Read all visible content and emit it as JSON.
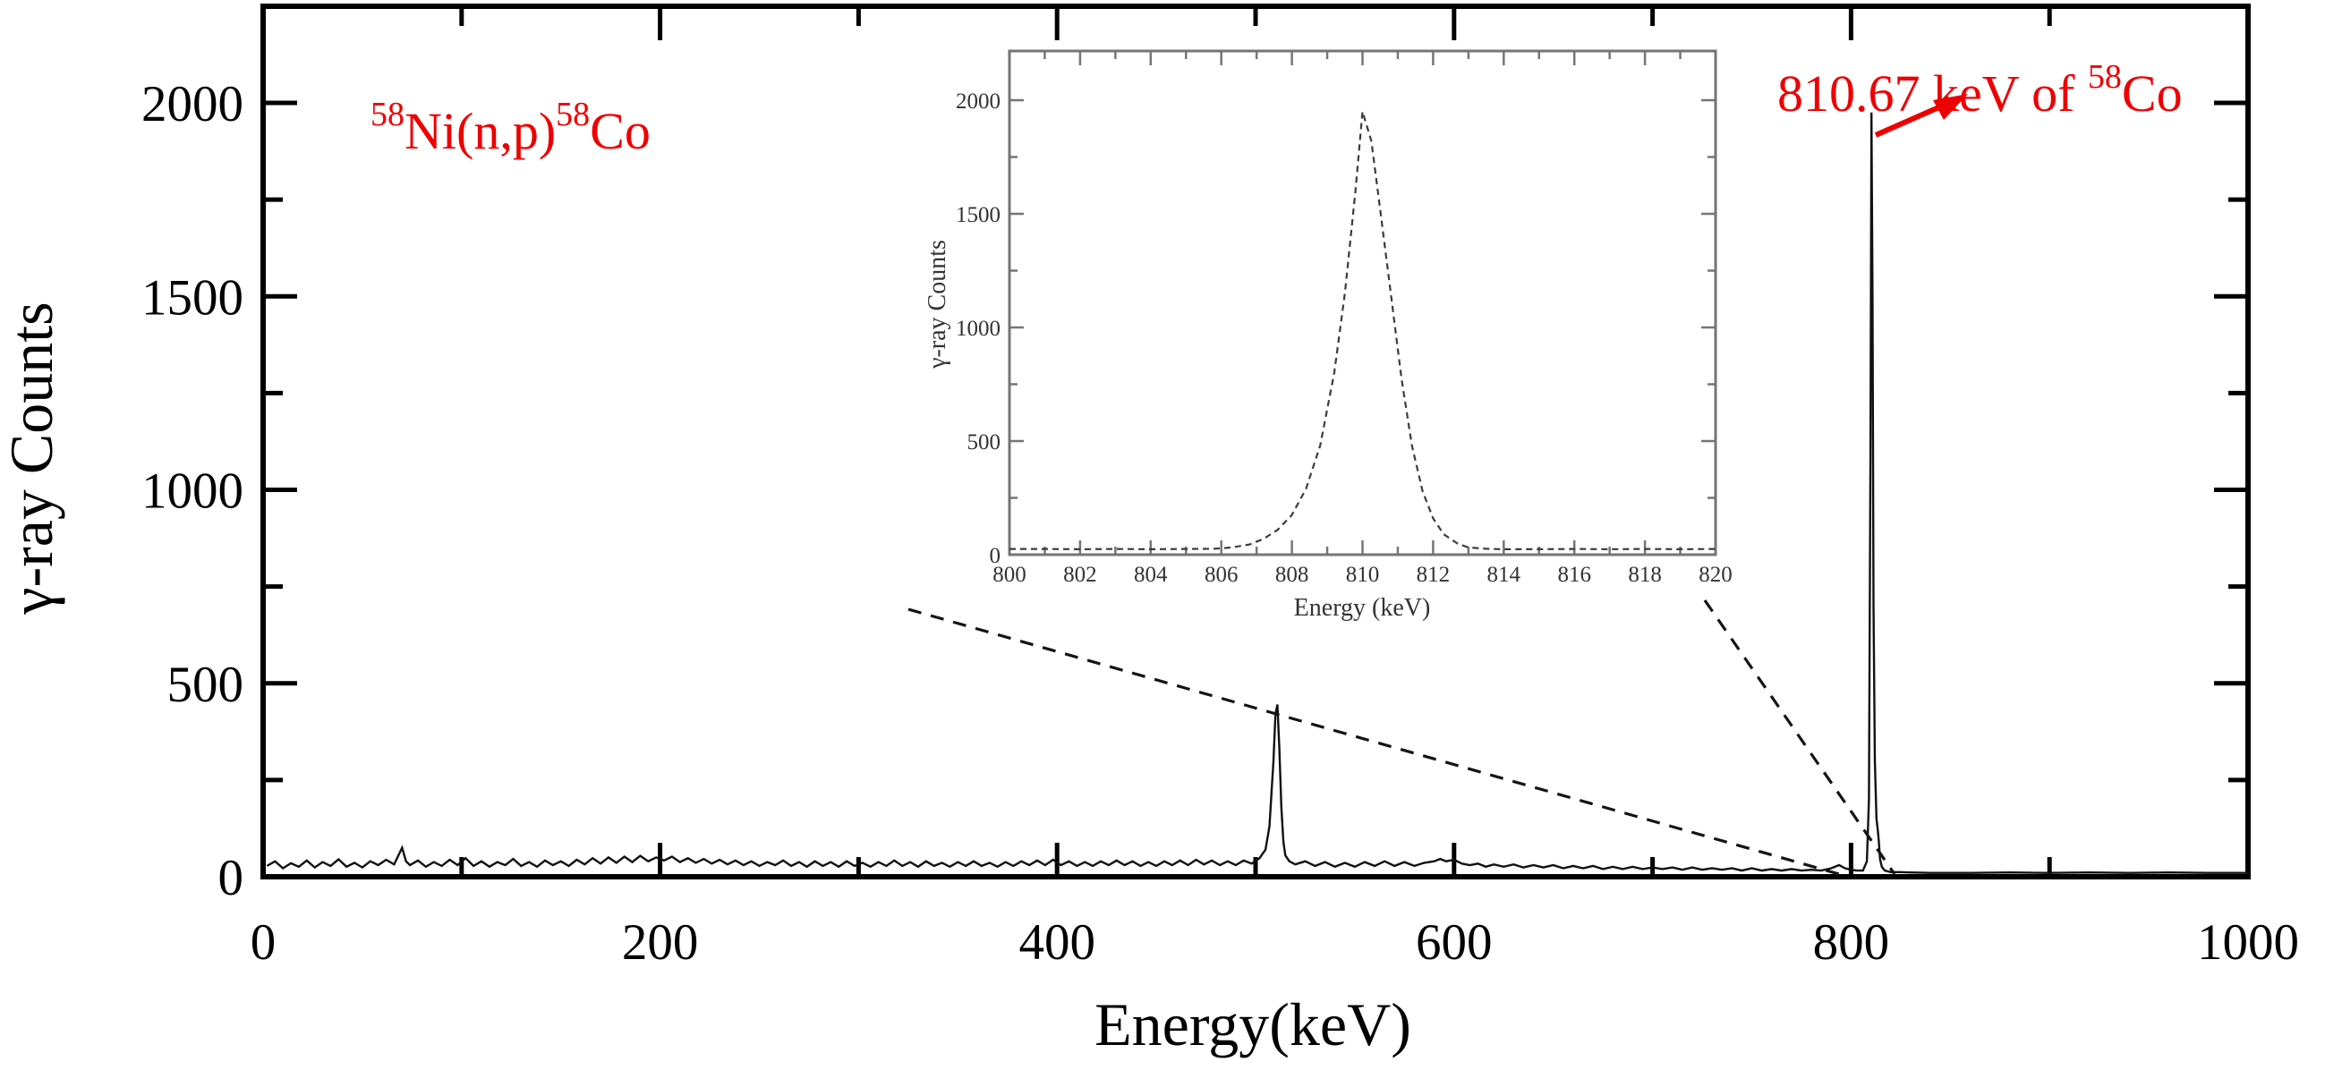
{
  "figure": {
    "background": "#ffffff",
    "accent_red": "#ee0000",
    "axis_color": "#000000",
    "trace_color": "#111111",
    "inset_frame_color": "#757575",
    "inset_curve_color": "#3c3c3c",
    "connector_color": "#141414"
  },
  "annotations": {
    "reaction": {
      "text": "58Ni(n,p)58Co",
      "parts": [
        {
          "t": "58",
          "sup": true
        },
        {
          "t": "Ni(n,p)",
          "sup": false
        },
        {
          "t": "58",
          "sup": true
        },
        {
          "t": "Co",
          "sup": false
        }
      ]
    },
    "peak": {
      "text": "810.67 keV of 58Co",
      "parts": [
        {
          "t": "810.67 keV of ",
          "sup": false
        },
        {
          "t": "58",
          "sup": true
        },
        {
          "t": "Co",
          "sup": false
        }
      ]
    }
  },
  "main_plot": {
    "xlabel": "Energy(keV)",
    "ylabel": "γ-ray Counts",
    "x_tick_labels": [
      "0",
      "200",
      "400",
      "600",
      "800",
      "1000"
    ],
    "y_tick_labels": [
      "0",
      "500",
      "1000",
      "1500",
      "2000"
    ]
  },
  "inset_plot": {
    "xlabel": "Energy (keV)",
    "ylabel": "γ-ray Counts",
    "x_tick_labels": [
      "800",
      "802",
      "804",
      "806",
      "808",
      "810",
      "812",
      "814",
      "816",
      "818",
      "820"
    ],
    "y_tick_labels": [
      "0",
      "500",
      "1000",
      "1500",
      "2000"
    ]
  },
  "chart_data": [
    {
      "type": "line",
      "name": "main-gamma-spectrum",
      "xlabel": "Energy(keV)",
      "ylabel": "γ-ray Counts",
      "xlim": [
        0,
        1000
      ],
      "ylim": [
        0,
        2250
      ],
      "x_major_ticks": [
        0,
        200,
        400,
        600,
        800,
        1000
      ],
      "x_minor_ticks": [
        100,
        300,
        500,
        700,
        900
      ],
      "y_major_ticks": [
        0,
        500,
        1000,
        1500,
        2000
      ],
      "y_minor_ticks": [
        250,
        750,
        1250,
        1750
      ],
      "grid": false,
      "peaks": [
        {
          "energy_keV": 511,
          "counts": 445
        },
        {
          "energy_keV": 810.67,
          "counts": 1975,
          "label": "810.67 keV of 58Co"
        }
      ],
      "points": [
        [
          2,
          28
        ],
        [
          6,
          40
        ],
        [
          10,
          22
        ],
        [
          14,
          35
        ],
        [
          18,
          26
        ],
        [
          22,
          42
        ],
        [
          26,
          24
        ],
        [
          30,
          38
        ],
        [
          34,
          28
        ],
        [
          38,
          45
        ],
        [
          42,
          26
        ],
        [
          46,
          36
        ],
        [
          50,
          24
        ],
        [
          54,
          40
        ],
        [
          58,
          30
        ],
        [
          62,
          44
        ],
        [
          66,
          32
        ],
        [
          70,
          75
        ],
        [
          72,
          40
        ],
        [
          74,
          30
        ],
        [
          78,
          42
        ],
        [
          82,
          26
        ],
        [
          86,
          38
        ],
        [
          90,
          28
        ],
        [
          94,
          44
        ],
        [
          98,
          30
        ],
        [
          102,
          48
        ],
        [
          106,
          28
        ],
        [
          110,
          40
        ],
        [
          114,
          26
        ],
        [
          118,
          38
        ],
        [
          122,
          30
        ],
        [
          126,
          46
        ],
        [
          130,
          28
        ],
        [
          134,
          38
        ],
        [
          138,
          26
        ],
        [
          142,
          42
        ],
        [
          146,
          30
        ],
        [
          150,
          40
        ],
        [
          154,
          28
        ],
        [
          158,
          44
        ],
        [
          162,
          32
        ],
        [
          166,
          48
        ],
        [
          170,
          34
        ],
        [
          174,
          50
        ],
        [
          178,
          36
        ],
        [
          182,
          52
        ],
        [
          186,
          38
        ],
        [
          190,
          54
        ],
        [
          194,
          40
        ],
        [
          198,
          50
        ],
        [
          202,
          42
        ],
        [
          206,
          52
        ],
        [
          210,
          38
        ],
        [
          214,
          48
        ],
        [
          218,
          36
        ],
        [
          222,
          46
        ],
        [
          226,
          34
        ],
        [
          230,
          44
        ],
        [
          234,
          32
        ],
        [
          238,
          42
        ],
        [
          242,
          30
        ],
        [
          246,
          40
        ],
        [
          250,
          28
        ],
        [
          254,
          38
        ],
        [
          258,
          30
        ],
        [
          262,
          42
        ],
        [
          266,
          28
        ],
        [
          270,
          38
        ],
        [
          274,
          26
        ],
        [
          278,
          40
        ],
        [
          282,
          28
        ],
        [
          286,
          38
        ],
        [
          290,
          26
        ],
        [
          294,
          40
        ],
        [
          298,
          28
        ],
        [
          302,
          36
        ],
        [
          306,
          26
        ],
        [
          310,
          38
        ],
        [
          314,
          28
        ],
        [
          318,
          42
        ],
        [
          322,
          28
        ],
        [
          326,
          38
        ],
        [
          330,
          26
        ],
        [
          334,
          40
        ],
        [
          338,
          28
        ],
        [
          342,
          36
        ],
        [
          346,
          26
        ],
        [
          350,
          38
        ],
        [
          354,
          28
        ],
        [
          358,
          40
        ],
        [
          362,
          28
        ],
        [
          366,
          36
        ],
        [
          370,
          26
        ],
        [
          374,
          38
        ],
        [
          378,
          28
        ],
        [
          382,
          40
        ],
        [
          386,
          30
        ],
        [
          390,
          42
        ],
        [
          394,
          30
        ],
        [
          398,
          44
        ],
        [
          402,
          30
        ],
        [
          406,
          40
        ],
        [
          410,
          28
        ],
        [
          414,
          38
        ],
        [
          418,
          28
        ],
        [
          422,
          40
        ],
        [
          426,
          30
        ],
        [
          430,
          42
        ],
        [
          434,
          30
        ],
        [
          438,
          40
        ],
        [
          442,
          28
        ],
        [
          446,
          38
        ],
        [
          450,
          28
        ],
        [
          454,
          40
        ],
        [
          458,
          30
        ],
        [
          462,
          42
        ],
        [
          466,
          30
        ],
        [
          470,
          44
        ],
        [
          474,
          32
        ],
        [
          478,
          42
        ],
        [
          482,
          30
        ],
        [
          486,
          40
        ],
        [
          490,
          30
        ],
        [
          494,
          42
        ],
        [
          498,
          34
        ],
        [
          502,
          48
        ],
        [
          505,
          70
        ],
        [
          507,
          130
        ],
        [
          509,
          300
        ],
        [
          510,
          420
        ],
        [
          511,
          445
        ],
        [
          512,
          330
        ],
        [
          513,
          180
        ],
        [
          514,
          90
        ],
        [
          515,
          55
        ],
        [
          517,
          40
        ],
        [
          520,
          32
        ],
        [
          525,
          40
        ],
        [
          530,
          28
        ],
        [
          535,
          38
        ],
        [
          540,
          26
        ],
        [
          545,
          36
        ],
        [
          550,
          26
        ],
        [
          555,
          38
        ],
        [
          560,
          28
        ],
        [
          565,
          40
        ],
        [
          570,
          28
        ],
        [
          575,
          38
        ],
        [
          580,
          28
        ],
        [
          585,
          36
        ],
        [
          590,
          40
        ],
        [
          593,
          46
        ],
        [
          596,
          40
        ],
        [
          600,
          44
        ],
        [
          604,
          34
        ],
        [
          608,
          30
        ],
        [
          612,
          34
        ],
        [
          616,
          26
        ],
        [
          620,
          32
        ],
        [
          625,
          26
        ],
        [
          630,
          32
        ],
        [
          635,
          24
        ],
        [
          640,
          30
        ],
        [
          645,
          24
        ],
        [
          650,
          30
        ],
        [
          655,
          22
        ],
        [
          660,
          28
        ],
        [
          665,
          22
        ],
        [
          670,
          28
        ],
        [
          675,
          20
        ],
        [
          680,
          26
        ],
        [
          685,
          20
        ],
        [
          690,
          26
        ],
        [
          695,
          20
        ],
        [
          700,
          24
        ],
        [
          705,
          20
        ],
        [
          710,
          24
        ],
        [
          715,
          18
        ],
        [
          720,
          24
        ],
        [
          725,
          18
        ],
        [
          730,
          22
        ],
        [
          735,
          18
        ],
        [
          740,
          22
        ],
        [
          745,
          16
        ],
        [
          750,
          22
        ],
        [
          755,
          16
        ],
        [
          760,
          20
        ],
        [
          765,
          16
        ],
        [
          770,
          20
        ],
        [
          775,
          16
        ],
        [
          780,
          18
        ],
        [
          785,
          16
        ],
        [
          790,
          22
        ],
        [
          794,
          30
        ],
        [
          797,
          22
        ],
        [
          800,
          18
        ],
        [
          803,
          16
        ],
        [
          806,
          16
        ],
        [
          808,
          40
        ],
        [
          809,
          200
        ],
        [
          809.8,
          1100
        ],
        [
          810.3,
          1975
        ],
        [
          810.8,
          1500
        ],
        [
          811.3,
          700
        ],
        [
          812,
          300
        ],
        [
          812.8,
          150
        ],
        [
          813.5,
          120
        ],
        [
          814,
          90
        ],
        [
          814.6,
          45
        ],
        [
          815.5,
          26
        ],
        [
          817,
          16
        ],
        [
          820,
          12
        ],
        [
          825,
          12
        ],
        [
          830,
          11
        ],
        [
          840,
          10
        ],
        [
          860,
          10
        ],
        [
          880,
          11
        ],
        [
          900,
          10
        ],
        [
          920,
          11
        ],
        [
          940,
          10
        ],
        [
          960,
          11
        ],
        [
          980,
          10
        ],
        [
          1000,
          10
        ]
      ]
    },
    {
      "type": "line",
      "name": "inset-zoom-810keV-peak",
      "xlabel": "Energy (keV)",
      "ylabel": "γ-ray Counts",
      "xlim": [
        800,
        820
      ],
      "ylim": [
        0,
        2200
      ],
      "x_major_ticks": [
        800,
        802,
        804,
        806,
        808,
        810,
        812,
        814,
        816,
        818,
        820
      ],
      "x_minor_ticks": [
        801,
        803,
        805,
        807,
        809,
        811,
        813,
        815,
        817,
        819
      ],
      "y_major_ticks": [
        0,
        500,
        1000,
        1500,
        2000
      ],
      "y_minor_ticks": [
        250,
        750,
        1250,
        1750
      ],
      "line_style": "dashed",
      "grid": false,
      "points": [
        [
          800,
          25
        ],
        [
          801,
          25
        ],
        [
          802,
          24
        ],
        [
          803,
          25
        ],
        [
          804,
          24
        ],
        [
          805,
          25
        ],
        [
          805.8,
          26
        ],
        [
          806.3,
          32
        ],
        [
          806.8,
          45
        ],
        [
          807.2,
          70
        ],
        [
          807.6,
          110
        ],
        [
          808,
          175
        ],
        [
          808.4,
          290
        ],
        [
          808.8,
          480
        ],
        [
          809.2,
          800
        ],
        [
          809.5,
          1150
        ],
        [
          809.8,
          1600
        ],
        [
          810,
          1950
        ],
        [
          810.25,
          1820
        ],
        [
          810.5,
          1520
        ],
        [
          810.8,
          1150
        ],
        [
          811.1,
          780
        ],
        [
          811.4,
          480
        ],
        [
          811.7,
          280
        ],
        [
          812,
          160
        ],
        [
          812.3,
          90
        ],
        [
          812.7,
          48
        ],
        [
          813,
          32
        ],
        [
          813.5,
          26
        ],
        [
          814,
          24
        ],
        [
          815,
          24
        ],
        [
          816,
          25
        ],
        [
          817,
          24
        ],
        [
          818,
          25
        ],
        [
          819,
          24
        ],
        [
          820,
          25
        ]
      ]
    }
  ]
}
